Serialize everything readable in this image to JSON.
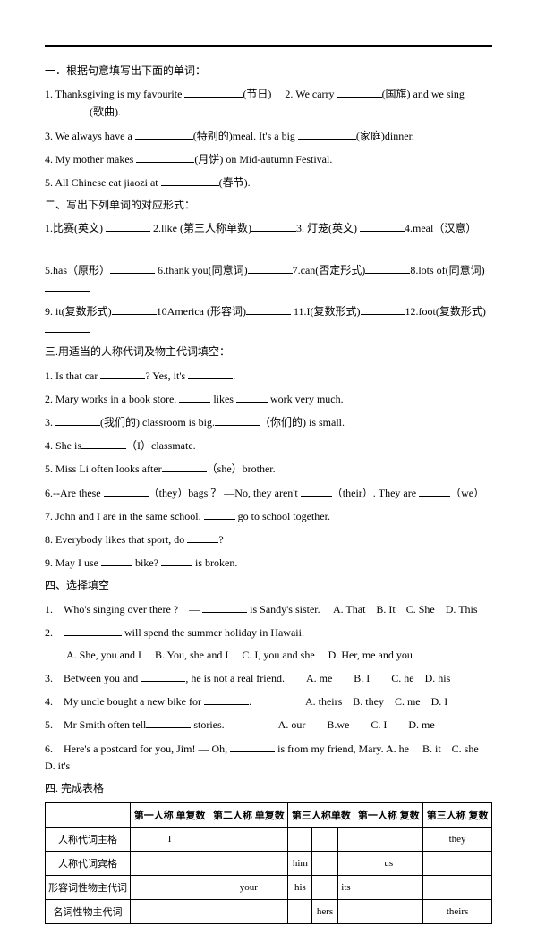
{
  "sections": {
    "s1_title": "一．根据句意填写出下面的单词：",
    "s1": {
      "q1a": "1. Thanksgiving is my favourite ",
      "q1b": "(节日)  2. We carry ",
      "q1c": "(国旗) and we sing ",
      "q1d": "(歌曲).",
      "q2a": "3. We always have a ",
      "q2b": "(特别的)meal. It's a big ",
      "q2c": "(家庭)dinner.",
      "q3a": "4. My mother makes ",
      "q3b": "(月饼) on Mid-autumn Festival.",
      "q4a": "5. All Chinese eat jiaozi at ",
      "q4b": "(春节)."
    },
    "s2_title": "二、写出下列单词的对应形式：",
    "s2": {
      "r1a": "1.比赛(英文) ",
      "r1b": " 2.like (第三人称单数)",
      "r1c": "3. 灯笼(英文) ",
      "r1d": "4.meal（汉意）",
      "r2a": "5.has（原形）",
      "r2b": " 6.thank you(同意词)",
      "r2c": "7.can(否定形式)",
      "r2d": "8.lots of(同意词)",
      "r3a": "9. it(复数形式)",
      "r3b": "10America (形容词)",
      "r3c": " 11.I(复数形式)",
      "r3d": "12.foot(复数形式)"
    },
    "s3_title": "三.用适当的人称代词及物主代词填空：",
    "s3": {
      "q1a": "1. Is that car ",
      "q1b": "? Yes, it's ",
      "q1c": ".",
      "q2a": "2. Mary works in a book store. ",
      "q2b": " likes ",
      "q2c": " work very much.",
      "q3a": "3. ",
      "q3b": "(我们的) classroom is big.",
      "q3c": "（你们的) is small.",
      "q4a": "4. She is",
      "q4b": "（I）classmate.",
      "q5a": "5. Miss Li often looks after",
      "q5b": "（she）brother.",
      "q6a": "6.--Are these ",
      "q6b": "（they）bags ？  —No, they aren't ",
      "q6c": "（their）. They are ",
      "q6d": "（we）",
      "q7a": " 7. John and I are in the same school. ",
      "q7b": " go to school together.",
      "q8a": "8. Everybody likes that sport, do ",
      "q8b": "?",
      "q9a": "9. May I use ",
      "q9b": " bike? ",
      "q9c": " is broken."
    },
    "s4_title": "四、选择填空",
    "s4": {
      "q1a": "1. Who's singing over there ? —  ",
      "q1b": " is Sandy's sister.  A. That B. It C. She D. This",
      "q2a": "2. ",
      "q2b": " will spend the summer holiday in Hawaii.",
      "q2opts": "  A. She, you and I  B. You, she and I  C. I, you and she  D. Her, me and you",
      "q3a": "3. Between you and ",
      "q3b": ", he is not a real friend.  A. me  B. I  C. he D. his",
      "q4a": "4. My uncle bought a new bike for ",
      "q4b": ".     A. theirs B. they C. me D. I",
      "q5a": "5. Mr Smith often tell",
      "q5b": " stories.     A. our  B.we  C. I  D. me",
      "q6a": "6. Here's a postcard for you, Jim! — Oh, ",
      "q6b": " is from my friend, Mary. A. he  B. it C. she D. it's"
    },
    "s5_title": "四. 完成表格",
    "table": {
      "headers": [
        "第一人称\n单复数",
        "第二人称\n单复数",
        "第三人称单数",
        "第一人称\n复数",
        "第三人称\n复数"
      ],
      "rows": [
        {
          "label": "人称代词主格",
          "cells": [
            "I",
            "",
            "",
            "",
            "",
            "",
            "they"
          ]
        },
        {
          "label": "人称代词宾格",
          "cells": [
            "",
            "",
            "him",
            "",
            "",
            "us",
            ""
          ]
        },
        {
          "label": "形容词性物主代词",
          "cells": [
            "",
            "your",
            "his",
            "",
            "its",
            "",
            ""
          ]
        },
        {
          "label": "名词性物主代词",
          "cells": [
            "",
            "",
            "",
            "hers",
            "",
            "",
            "theirs"
          ]
        }
      ]
    }
  }
}
